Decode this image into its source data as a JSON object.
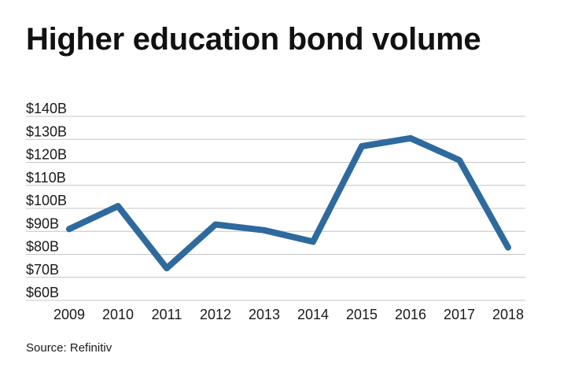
{
  "title": "Higher education bond volume",
  "source": "Source: Refinitiv",
  "chart_data": {
    "type": "line",
    "title": "Higher education bond volume",
    "xlabel": "",
    "ylabel": "",
    "categories": [
      "2009",
      "2010",
      "2011",
      "2012",
      "2013",
      "2014",
      "2015",
      "2016",
      "2017",
      "2018"
    ],
    "values": [
      91,
      101,
      74,
      93,
      90.5,
      85.5,
      127,
      130.5,
      121,
      83
    ],
    "ylim": [
      60,
      140
    ],
    "y_ticks": [
      60,
      70,
      80,
      90,
      100,
      110,
      120,
      130,
      140
    ],
    "y_tick_labels": [
      "$60B",
      "$70B",
      "$80B",
      "$90B",
      "$100B",
      "$110B",
      "$120B",
      "$130B",
      "$140B"
    ],
    "grid": true,
    "line_color": "#2e6a9d",
    "grid_color": "#c4c4c4"
  }
}
